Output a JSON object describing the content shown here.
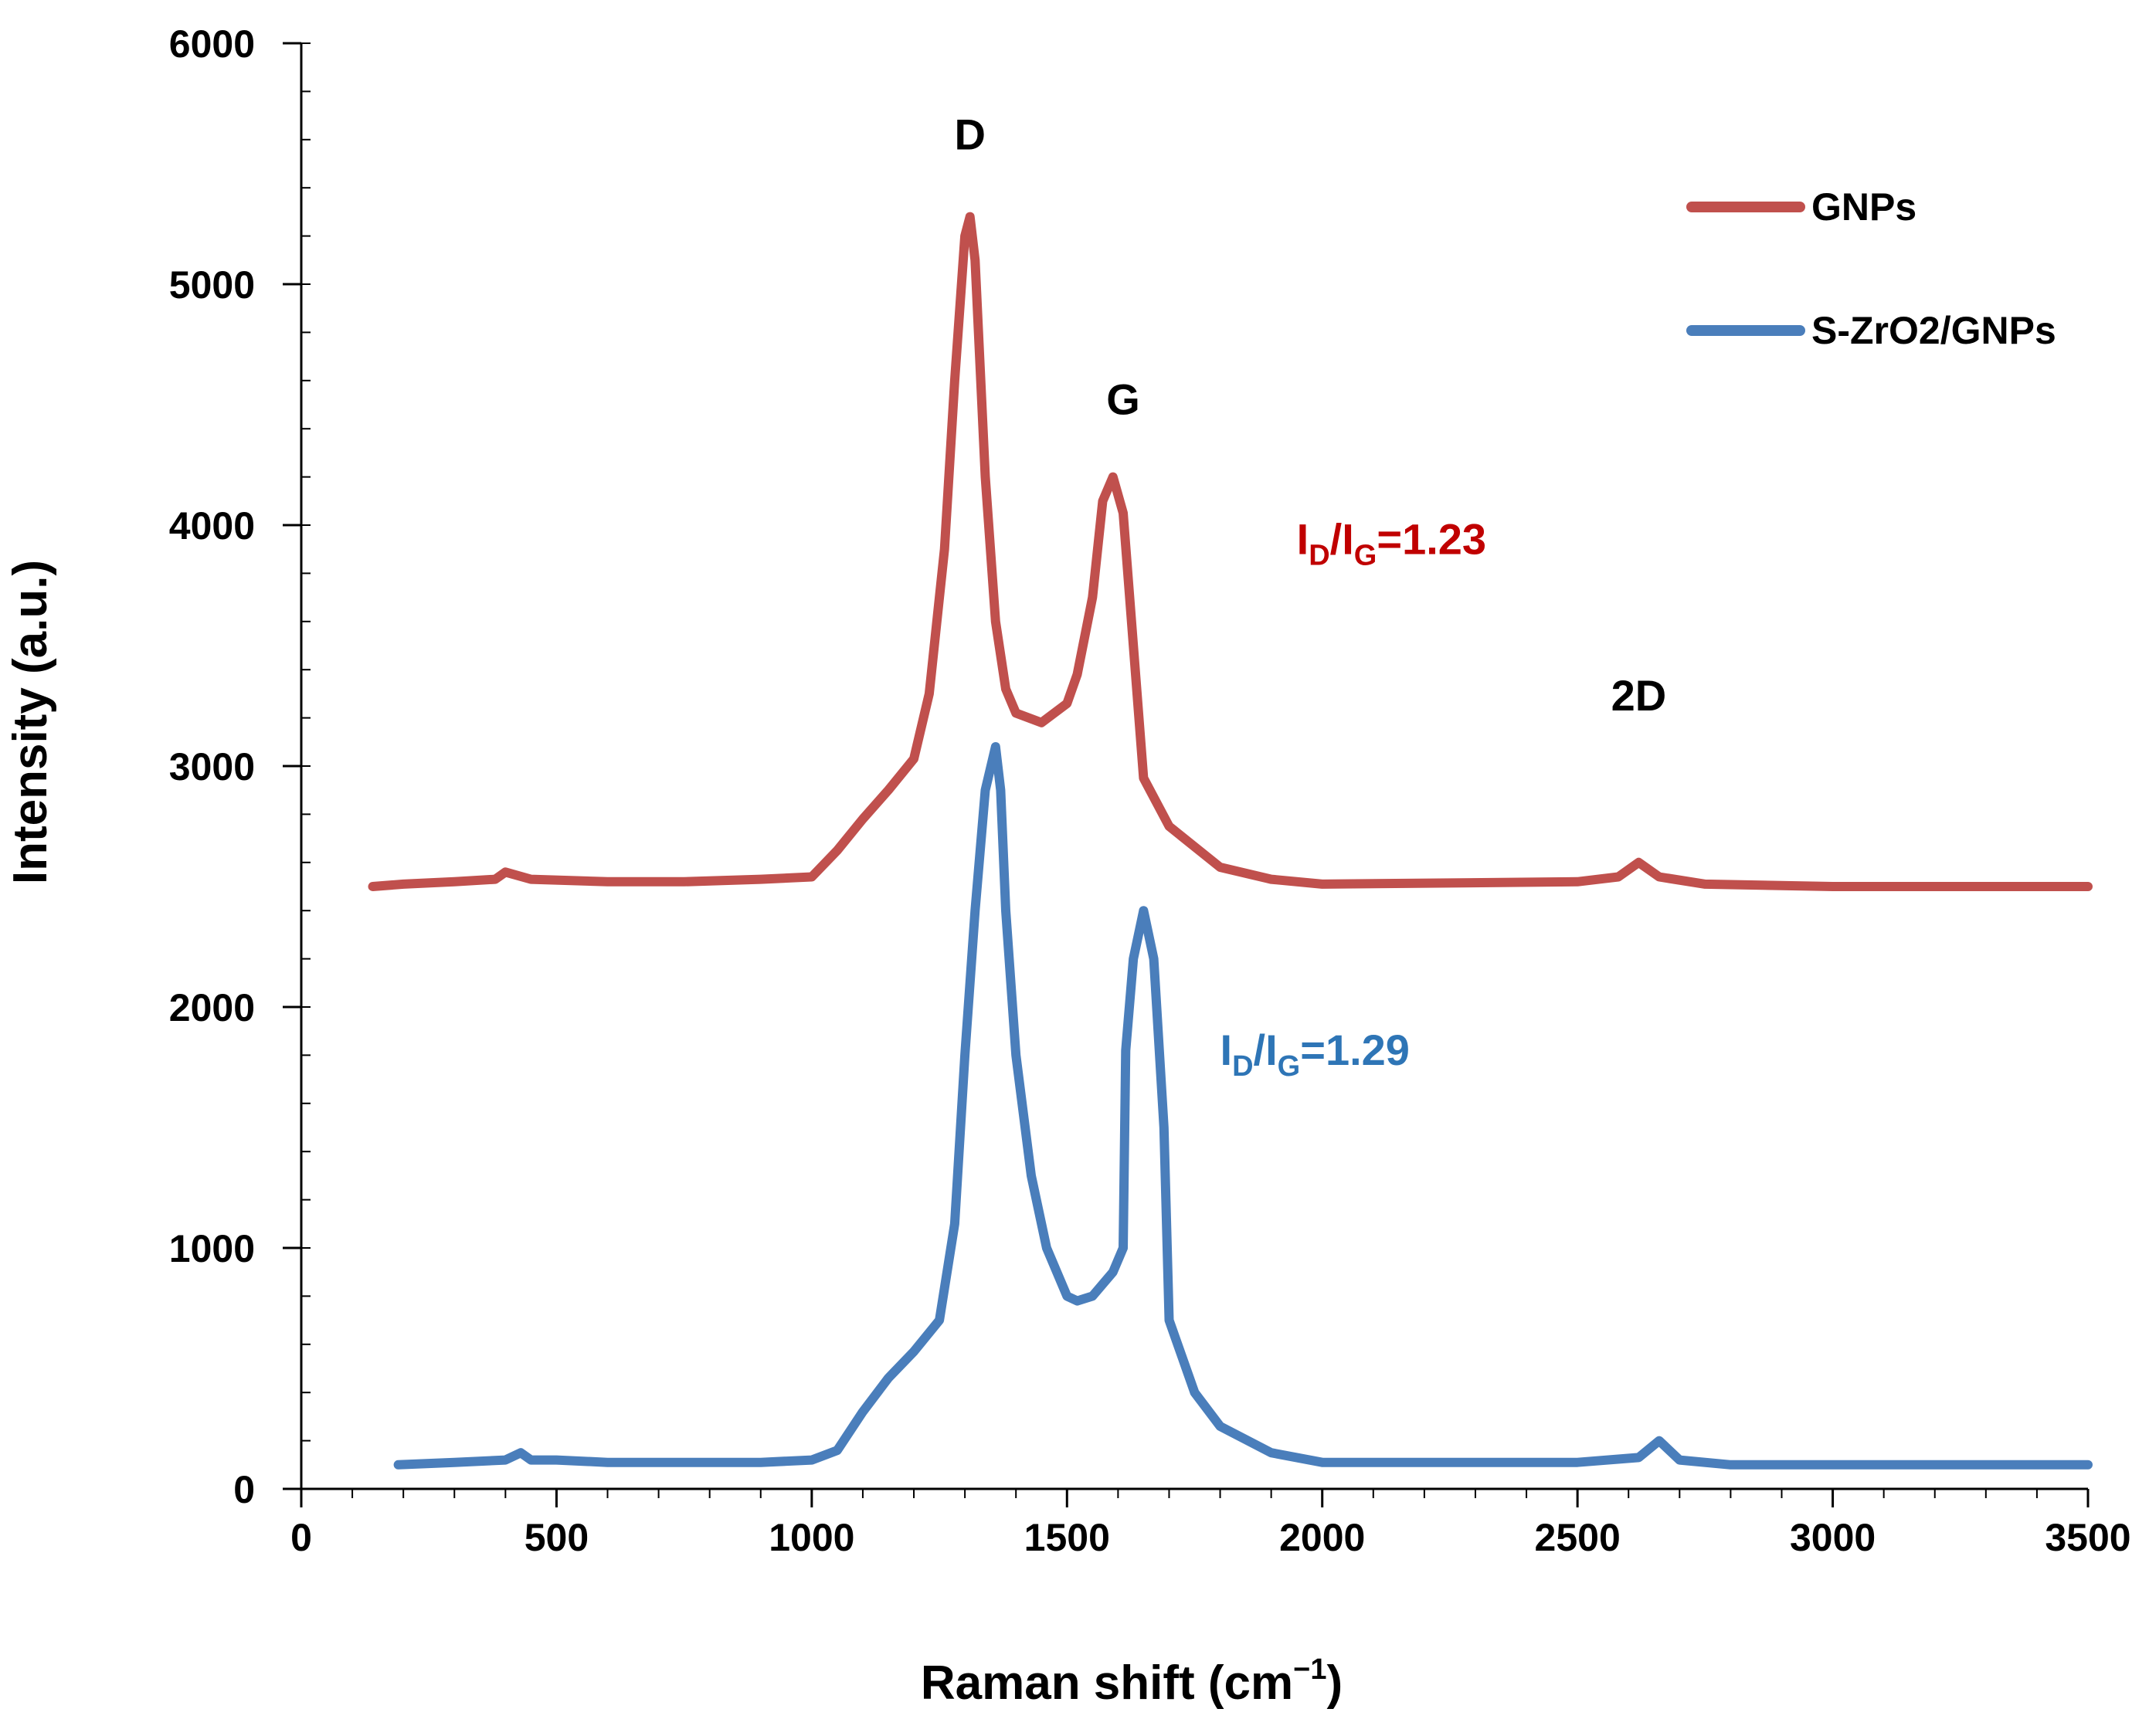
{
  "chart_data": {
    "type": "line",
    "title": "",
    "xlabel": "Raman shift (cm",
    "xlabel_sup": "−1",
    "xlabel_close": ")",
    "ylabel": "Intensity (a.u.)",
    "xlim": [
      0,
      3500
    ],
    "ylim": [
      0,
      6000
    ],
    "xticks": [
      0,
      500,
      1000,
      1500,
      2000,
      2500,
      3000,
      3500
    ],
    "yticks": [
      0,
      1000,
      2000,
      3000,
      4000,
      5000,
      6000
    ],
    "x_minor_step": 100,
    "y_minor_step": 200,
    "grid": false,
    "legend_position": "top-right",
    "series": [
      {
        "name": "GNPs",
        "color": "#C0504D",
        "x": [
          140,
          200,
          300,
          380,
          400,
          450,
          600,
          750,
          900,
          1000,
          1050,
          1100,
          1150,
          1200,
          1230,
          1260,
          1280,
          1300,
          1310,
          1320,
          1340,
          1360,
          1380,
          1400,
          1450,
          1500,
          1520,
          1550,
          1570,
          1590,
          1610,
          1630,
          1650,
          1700,
          1800,
          1900,
          2000,
          2500,
          2580,
          2620,
          2660,
          2750,
          3000,
          3500
        ],
        "y": [
          2500,
          2510,
          2520,
          2530,
          2560,
          2530,
          2520,
          2520,
          2530,
          2540,
          2650,
          2780,
          2900,
          3030,
          3300,
          3900,
          4600,
          5200,
          5280,
          5100,
          4200,
          3600,
          3320,
          3220,
          3180,
          3260,
          3380,
          3700,
          4100,
          4200,
          4050,
          3500,
          2950,
          2750,
          2580,
          2530,
          2510,
          2520,
          2540,
          2600,
          2540,
          2510,
          2500,
          2500
        ]
      },
      {
        "name": "S-ZrO2/GNPs",
        "color": "#4A7EBB",
        "x": [
          190,
          300,
          400,
          430,
          450,
          500,
          600,
          800,
          900,
          1000,
          1050,
          1100,
          1150,
          1200,
          1250,
          1280,
          1300,
          1320,
          1340,
          1360,
          1370,
          1380,
          1400,
          1430,
          1460,
          1500,
          1520,
          1550,
          1590,
          1610,
          1615,
          1630,
          1650,
          1670,
          1690,
          1700,
          1750,
          1800,
          1900,
          2000,
          2500,
          2620,
          2660,
          2700,
          2800,
          3500
        ],
        "y": [
          100,
          110,
          120,
          150,
          120,
          120,
          110,
          110,
          110,
          120,
          160,
          320,
          460,
          570,
          700,
          1100,
          1800,
          2400,
          2900,
          3080,
          2900,
          2400,
          1800,
          1300,
          1000,
          800,
          780,
          800,
          900,
          1000,
          1820,
          2200,
          2400,
          2200,
          1500,
          700,
          400,
          260,
          150,
          110,
          110,
          130,
          200,
          120,
          100,
          100
        ]
      }
    ],
    "peak_labels": [
      {
        "text": "D",
        "x": 1310,
        "y": 5560
      },
      {
        "text": "G",
        "x": 1610,
        "y": 4460
      },
      {
        "text": "2D",
        "x": 2620,
        "y": 3230
      }
    ],
    "ratio_labels": [
      {
        "base": "I",
        "sub1": "D",
        "mid": "/I",
        "sub2": "G",
        "value": "=1.23",
        "color": "#C00000",
        "x": 1950,
        "y": 3880
      },
      {
        "base": "I",
        "sub1": "D",
        "mid": "/I",
        "sub2": "G",
        "value": "=1.29",
        "color": "#2E75B6",
        "x": 1800,
        "y": 1760
      }
    ]
  }
}
